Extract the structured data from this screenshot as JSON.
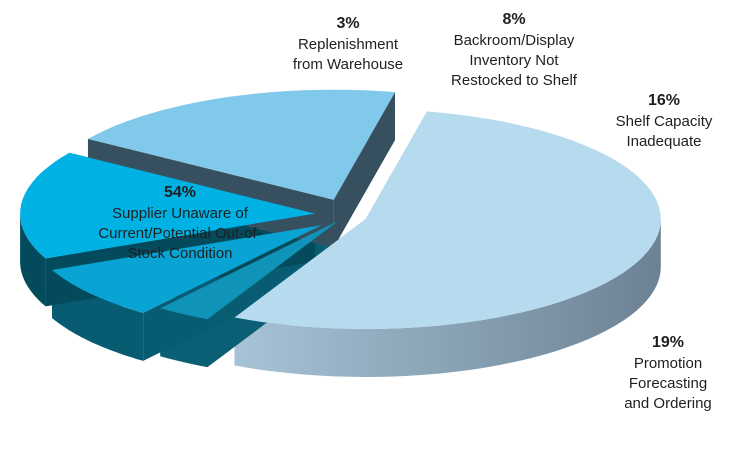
{
  "chart_data": {
    "type": "pie",
    "title": "",
    "slices": [
      {
        "value": 54,
        "pct_label": "54%",
        "label_lines": [
          "Supplier Unaware of",
          "Current/Potential Out-of-",
          "Stock Condition"
        ],
        "top_color": "#b6dbef",
        "side_color": "#7d97aa"
      },
      {
        "value": 3,
        "pct_label": "3%",
        "label_lines": [
          "Replenishment",
          "from Warehouse"
        ],
        "top_color": "#0f93b8",
        "side_color": "#0a5f75"
      },
      {
        "value": 8,
        "pct_label": "8%",
        "label_lines": [
          "Backroom/Display",
          "Inventory Not",
          "Restocked to Shelf"
        ],
        "top_color": "#0aa4d4",
        "side_color": "#075c72"
      },
      {
        "value": 16,
        "pct_label": "16%",
        "label_lines": [
          "Shelf Capacity",
          "Inadequate"
        ],
        "top_color": "#00b2e4",
        "side_color": "#034a5c"
      },
      {
        "value": 19,
        "pct_label": "19%",
        "label_lines": [
          "Promotion",
          "Forecasting",
          "and Ordering"
        ],
        "top_color": "#80c9ea",
        "side_color": "#36505f"
      }
    ]
  }
}
